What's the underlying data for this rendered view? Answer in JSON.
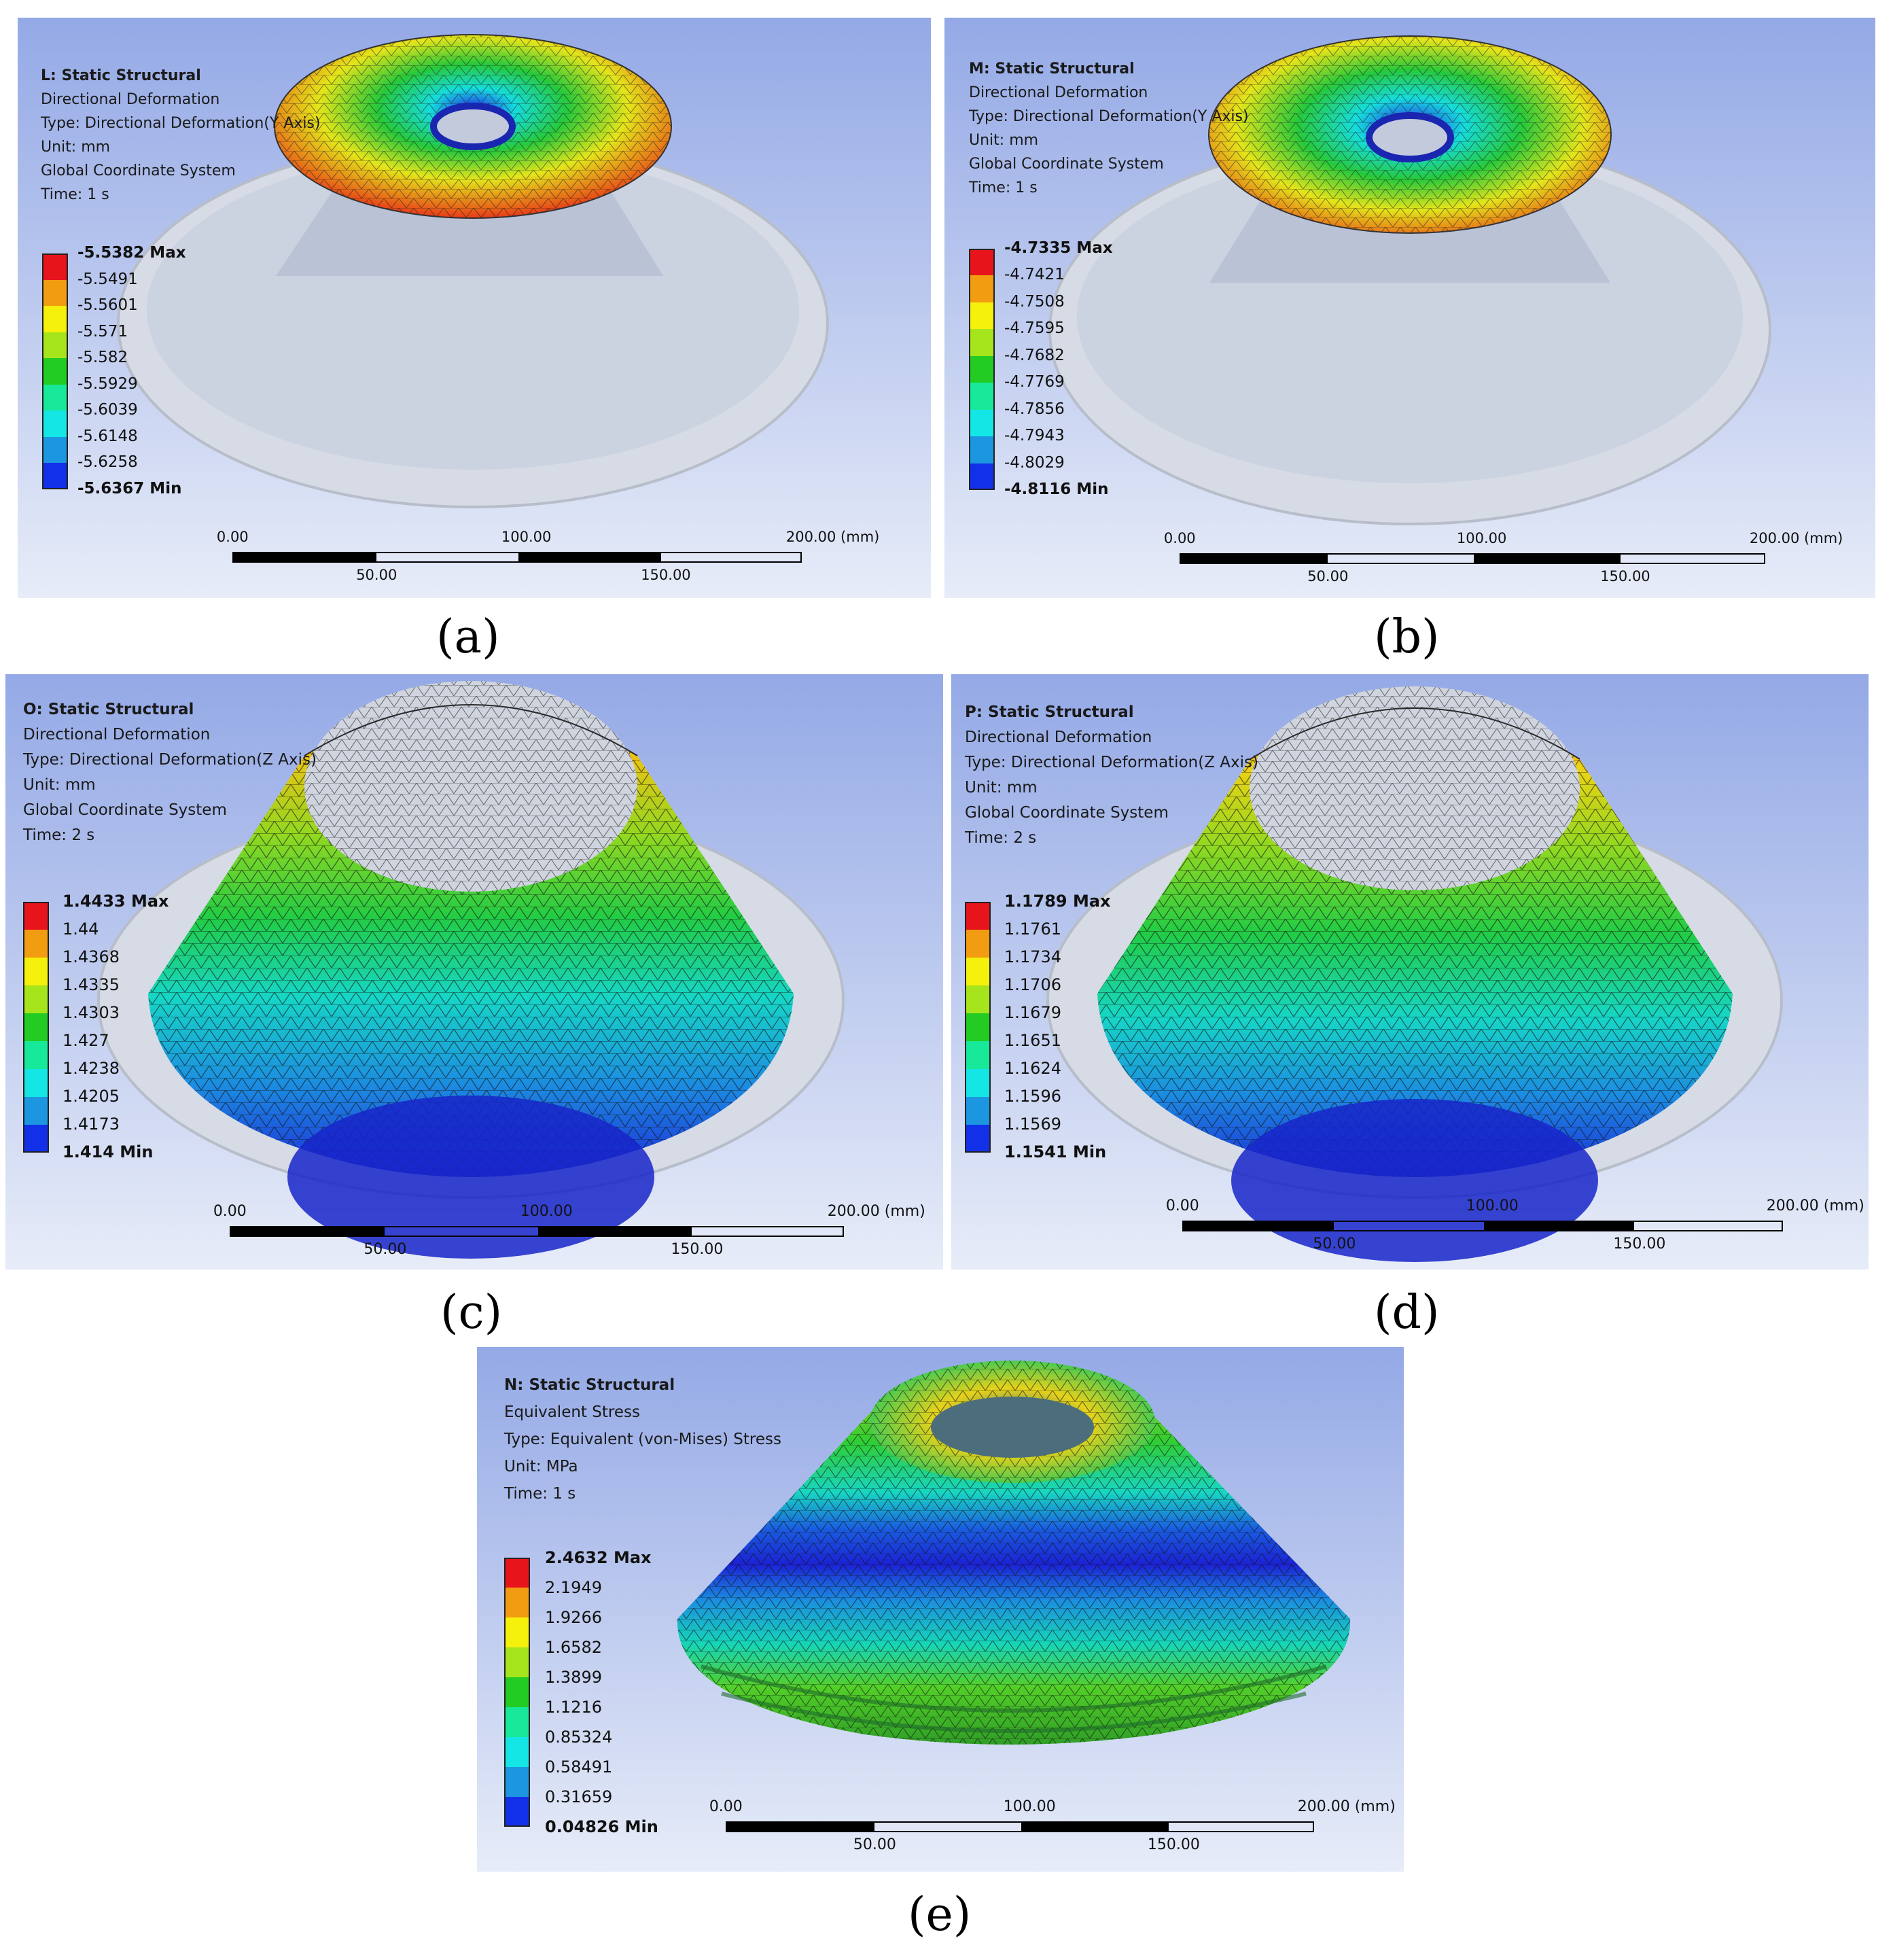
{
  "panels": [
    {
      "id": "a",
      "caption": "(a)",
      "title": "L: Static Structural",
      "lines": [
        "Directional Deformation",
        "Type: Directional Deformation(Y Axis)",
        "Unit: mm",
        "Global Coordinate System",
        "Time: 1 s"
      ],
      "legend": [
        {
          "label": "-5.5382 Max",
          "color": "#e8141c"
        },
        {
          "label": "-5.5491",
          "color": "#f29c12"
        },
        {
          "label": "-5.5601",
          "color": "#f5f00c"
        },
        {
          "label": "-5.571",
          "color": "#a6e51c"
        },
        {
          "label": "-5.582",
          "color": "#22cc22"
        },
        {
          "label": "-5.5929",
          "color": "#18e89a"
        },
        {
          "label": "-5.6039",
          "color": "#14e6e6"
        },
        {
          "label": "-5.6148",
          "color": "#1c96e0"
        },
        {
          "label": "-5.6258",
          "color": "#1230e8"
        },
        {
          "label": "-5.6367 Min",
          "color": ""
        }
      ],
      "scale": {
        "top": [
          "0.00",
          "100.00",
          "200.00 (mm)"
        ],
        "bottom": [
          "50.00",
          "150.00"
        ]
      }
    },
    {
      "id": "b",
      "caption": "(b)",
      "title": "M: Static Structural",
      "lines": [
        "Directional Deformation",
        "Type: Directional Deformation(Y Axis)",
        "Unit: mm",
        "Global Coordinate System",
        "Time: 1 s"
      ],
      "legend": [
        {
          "label": "-4.7335 Max",
          "color": "#e8141c"
        },
        {
          "label": "-4.7421",
          "color": "#f29c12"
        },
        {
          "label": "-4.7508",
          "color": "#f5f00c"
        },
        {
          "label": "-4.7595",
          "color": "#a6e51c"
        },
        {
          "label": "-4.7682",
          "color": "#22cc22"
        },
        {
          "label": "-4.7769",
          "color": "#18e89a"
        },
        {
          "label": "-4.7856",
          "color": "#14e6e6"
        },
        {
          "label": "-4.7943",
          "color": "#1c96e0"
        },
        {
          "label": "-4.8029",
          "color": "#1230e8"
        },
        {
          "label": "-4.8116 Min",
          "color": ""
        }
      ],
      "scale": {
        "top": [
          "0.00",
          "100.00",
          "200.00 (mm)"
        ],
        "bottom": [
          "50.00",
          "150.00"
        ]
      }
    },
    {
      "id": "c",
      "caption": "(c)",
      "title": "O: Static Structural",
      "lines": [
        "Directional Deformation",
        "Type: Directional Deformation(Z Axis)",
        "Unit: mm",
        "Global Coordinate System",
        "Time: 2 s"
      ],
      "legend": [
        {
          "label": "1.4433 Max",
          "color": "#e8141c"
        },
        {
          "label": "1.44",
          "color": "#f29c12"
        },
        {
          "label": "1.4368",
          "color": "#f5f00c"
        },
        {
          "label": "1.4335",
          "color": "#a6e51c"
        },
        {
          "label": "1.4303",
          "color": "#22cc22"
        },
        {
          "label": "1.427",
          "color": "#18e89a"
        },
        {
          "label": "1.4238",
          "color": "#14e6e6"
        },
        {
          "label": "1.4205",
          "color": "#1c96e0"
        },
        {
          "label": "1.4173",
          "color": "#1230e8"
        },
        {
          "label": "1.414 Min",
          "color": ""
        }
      ],
      "scale": {
        "top": [
          "0.00",
          "100.00",
          "200.00 (mm)"
        ],
        "bottom": [
          "50.00",
          "150.00"
        ]
      }
    },
    {
      "id": "d",
      "caption": "(d)",
      "title": "P: Static Structural",
      "lines": [
        "Directional Deformation",
        "Type: Directional Deformation(Z Axis)",
        "Unit: mm",
        "Global Coordinate System",
        "Time: 2 s"
      ],
      "legend": [
        {
          "label": "1.1789 Max",
          "color": "#e8141c"
        },
        {
          "label": "1.1761",
          "color": "#f29c12"
        },
        {
          "label": "1.1734",
          "color": "#f5f00c"
        },
        {
          "label": "1.1706",
          "color": "#a6e51c"
        },
        {
          "label": "1.1679",
          "color": "#22cc22"
        },
        {
          "label": "1.1651",
          "color": "#18e89a"
        },
        {
          "label": "1.1624",
          "color": "#14e6e6"
        },
        {
          "label": "1.1596",
          "color": "#1c96e0"
        },
        {
          "label": "1.1569",
          "color": "#1230e8"
        },
        {
          "label": "1.1541 Min",
          "color": ""
        }
      ],
      "scale": {
        "top": [
          "0.00",
          "100.00",
          "200.00 (mm)"
        ],
        "bottom": [
          "50.00",
          "150.00"
        ]
      }
    },
    {
      "id": "e",
      "caption": "(e)",
      "title": "N: Static Structural",
      "lines": [
        "Equivalent Stress",
        "Type: Equivalent (von-Mises) Stress",
        "Unit: MPa",
        "Time: 1 s"
      ],
      "legend": [
        {
          "label": "2.4632 Max",
          "color": "#e8141c"
        },
        {
          "label": "2.1949",
          "color": "#f29c12"
        },
        {
          "label": "1.9266",
          "color": "#f5f00c"
        },
        {
          "label": "1.6582",
          "color": "#a6e51c"
        },
        {
          "label": "1.3899",
          "color": "#22cc22"
        },
        {
          "label": "1.1216",
          "color": "#18e89a"
        },
        {
          "label": "0.85324",
          "color": "#14e6e6"
        },
        {
          "label": "0.58491",
          "color": "#1c96e0"
        },
        {
          "label": "0.31659",
          "color": "#1230e8"
        },
        {
          "label": "0.04826 Min",
          "color": ""
        }
      ],
      "scale": {
        "top": [
          "0.00",
          "100.00",
          "200.00 (mm)"
        ],
        "bottom": [
          "50.00",
          "150.00"
        ]
      }
    }
  ]
}
